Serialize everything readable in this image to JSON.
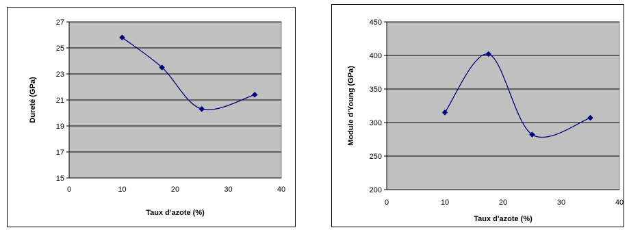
{
  "chart_data": [
    {
      "type": "line",
      "title": "",
      "xlabel": "Taux d'azote (%)",
      "ylabel": "Dureté (GPa)",
      "xlim": [
        0,
        40
      ],
      "ylim": [
        15,
        27
      ],
      "xticks": [
        "0",
        "10",
        "20",
        "30",
        "40"
      ],
      "yticks": [
        "15",
        "17",
        "19",
        "21",
        "23",
        "25",
        "27"
      ],
      "grid": "horizontal",
      "smooth": true,
      "series": [
        {
          "x": [
            10,
            17.5,
            25,
            35
          ],
          "y": [
            25.8,
            23.5,
            20.3,
            21.4
          ]
        }
      ]
    },
    {
      "type": "line",
      "title": "",
      "xlabel": "Taux d'azote (%)",
      "ylabel": "Module d'Young (GPa)",
      "xlim": [
        0,
        40
      ],
      "ylim": [
        200,
        450
      ],
      "xticks": [
        "0",
        "10",
        "20",
        "30",
        "40"
      ],
      "yticks": [
        "200",
        "250",
        "300",
        "350",
        "400",
        "450"
      ],
      "grid": "horizontal",
      "smooth": true,
      "series": [
        {
          "x": [
            10,
            17.5,
            25,
            35
          ],
          "y": [
            315,
            402,
            282,
            307
          ]
        }
      ]
    }
  ],
  "colors": {
    "plot_background": "#c0c0c0",
    "gridline": "#000000",
    "line": "#000080",
    "marker": "#000080"
  }
}
